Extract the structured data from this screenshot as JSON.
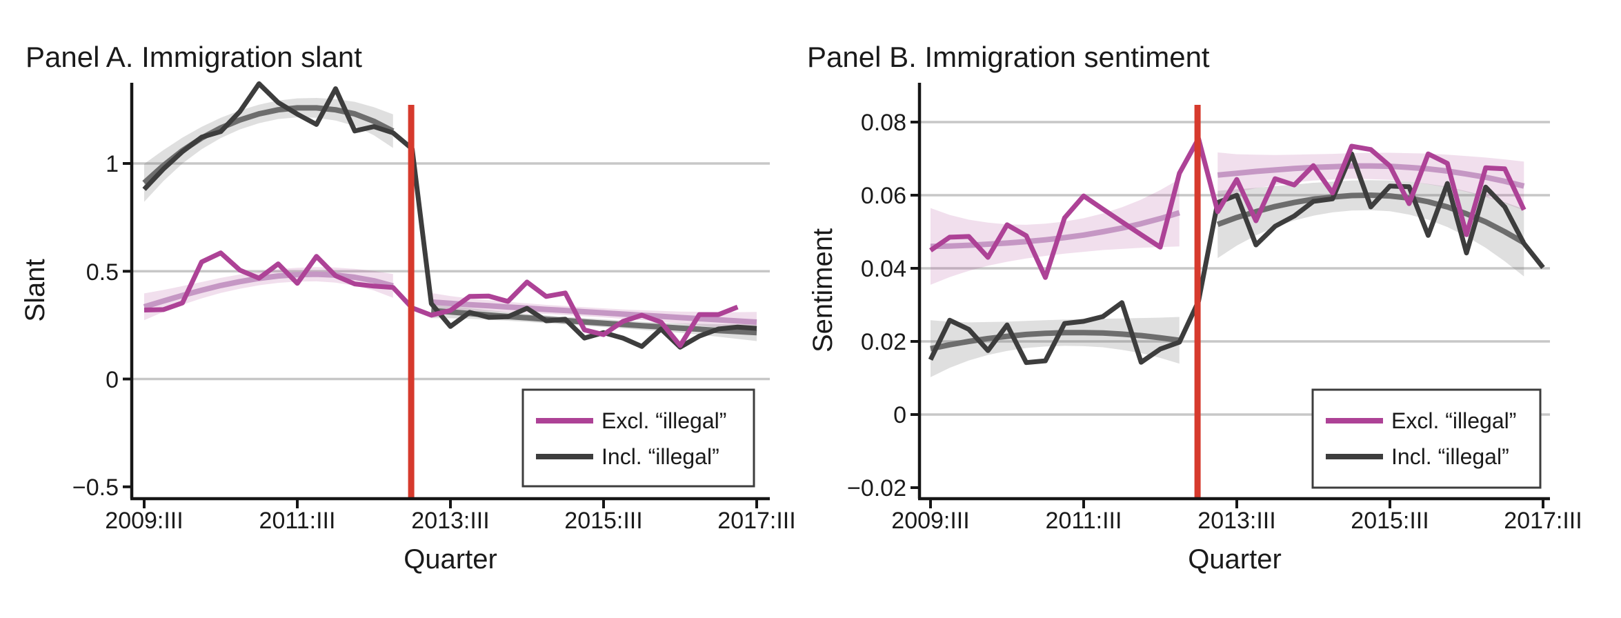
{
  "figure": {
    "background": "#ffffff",
    "event_line_color": "#d63a2d",
    "grid_color": "#c7c7c7",
    "axis_color": "#161616"
  },
  "chart_data": [
    {
      "panel": "A",
      "type": "line",
      "title": "Panel A. Immigration slant",
      "xlabel": "Quarter",
      "ylabel": "Slant",
      "ylim": [
        -0.56,
        1.38
      ],
      "grid": true,
      "legend_position": "bottom-right",
      "gridline_values": [
        1,
        0.5,
        0
      ],
      "y_ticks": [
        {
          "label": "1",
          "value": 1
        },
        {
          "label": "0.5",
          "value": 0.5
        },
        {
          "label": "0",
          "value": 0
        },
        {
          "label": "−0.5",
          "value": -0.5
        }
      ],
      "x_ticks": [
        {
          "label": "2009:III",
          "q": 0
        },
        {
          "label": "2011:III",
          "q": 8
        },
        {
          "label": "2013:III",
          "q": 16
        },
        {
          "label": "2015:III",
          "q": 24
        },
        {
          "label": "2017:III",
          "q": 32
        }
      ],
      "event_line": {
        "q": 13.95,
        "color": "#d63a2d"
      },
      "categories": [
        "2009:III",
        "2009:IV",
        "2010:I",
        "2010:II",
        "2010:III",
        "2010:IV",
        "2011:I",
        "2011:II",
        "2011:III",
        "2011:IV",
        "2012:I",
        "2012:II",
        "2012:III",
        "2012:IV",
        "2013:I",
        "2013:II",
        "2013:III",
        "2013:IV",
        "2014:I",
        "2014:II",
        "2014:III",
        "2014:IV",
        "2015:I",
        "2015:II",
        "2015:III",
        "2015:IV",
        "2016:I",
        "2016:II",
        "2016:III",
        "2016:IV",
        "2017:I",
        "2017:II",
        "2017:III"
      ],
      "series": [
        {
          "key": "excl",
          "name": "Excl. “illegal”",
          "color": "#ad4296",
          "values": [
            0.32,
            0.322,
            0.353,
            0.543,
            0.585,
            0.505,
            0.468,
            0.534,
            0.444,
            0.569,
            0.479,
            0.441,
            0.431,
            0.425,
            0.33,
            0.296,
            0.318,
            0.383,
            0.385,
            0.36,
            0.45,
            0.383,
            0.399,
            0.228,
            0.206,
            0.267,
            0.296,
            0.264,
            0.155,
            0.299,
            0.299,
            0.334,
            null
          ]
        },
        {
          "key": "incl",
          "name": "Incl. “illegal”",
          "color": "#3d3d3d",
          "values": [
            0.88,
            0.974,
            1.055,
            1.122,
            1.148,
            1.241,
            1.37,
            1.283,
            1.229,
            1.181,
            1.347,
            1.151,
            1.171,
            1.142,
            1.068,
            0.35,
            0.244,
            0.309,
            0.286,
            0.289,
            0.328,
            0.27,
            0.277,
            0.19,
            0.215,
            0.19,
            0.151,
            0.232,
            0.148,
            0.199,
            0.232,
            0.241,
            0.235
          ]
        }
      ],
      "smooths": [
        {
          "key": "excl",
          "segment": "pre",
          "q_start": 0,
          "values": [
            0.335,
            0.362,
            0.388,
            0.412,
            0.434,
            0.452,
            0.467,
            0.478,
            0.484,
            0.486,
            0.482,
            0.472,
            0.456,
            0.432
          ],
          "band_halfwidth": [
            0.062,
            0.051,
            0.043,
            0.038,
            0.035,
            0.033,
            0.032,
            0.032,
            0.032,
            0.033,
            0.035,
            0.039,
            0.045,
            0.055
          ]
        },
        {
          "key": "excl",
          "segment": "post",
          "q_start": 15,
          "values": [
            0.357,
            0.351,
            0.345,
            0.34,
            0.334,
            0.329,
            0.323,
            0.318,
            0.312,
            0.307,
            0.301,
            0.296,
            0.291,
            0.285,
            0.28,
            0.275,
            0.269,
            0.264
          ],
          "band_halfwidth": [
            0.042,
            0.034,
            0.029,
            0.026,
            0.024,
            0.022,
            0.021,
            0.021,
            0.021,
            0.021,
            0.022,
            0.023,
            0.025,
            0.028,
            0.032,
            0.036,
            0.041,
            0.047
          ]
        },
        {
          "key": "incl",
          "segment": "pre",
          "q_start": 0,
          "values": [
            0.91,
            0.99,
            1.06,
            1.118,
            1.165,
            1.202,
            1.23,
            1.249,
            1.258,
            1.258,
            1.249,
            1.23,
            1.196,
            1.15
          ],
          "band_halfwidth": [
            0.088,
            0.072,
            0.06,
            0.052,
            0.047,
            0.044,
            0.043,
            0.043,
            0.044,
            0.046,
            0.05,
            0.056,
            0.065,
            0.078
          ]
        },
        {
          "key": "incl",
          "segment": "post",
          "q_start": 15,
          "values": [
            0.318,
            0.311,
            0.304,
            0.297,
            0.29,
            0.284,
            0.277,
            0.271,
            0.265,
            0.259,
            0.253,
            0.247,
            0.242,
            0.236,
            0.231,
            0.225,
            0.22,
            0.215
          ],
          "band_halfwidth": [
            0.036,
            0.029,
            0.025,
            0.022,
            0.02,
            0.019,
            0.018,
            0.018,
            0.018,
            0.018,
            0.018,
            0.019,
            0.02,
            0.022,
            0.025,
            0.029,
            0.034,
            0.039
          ]
        }
      ]
    },
    {
      "panel": "B",
      "type": "line",
      "title": "Panel B. Immigration sentiment",
      "xlabel": "Quarter",
      "ylabel": "Sentiment",
      "ylim": [
        -0.025,
        0.09
      ],
      "grid": true,
      "legend_position": "bottom-right",
      "gridline_values": [
        0.08,
        0.06,
        0.04,
        0.02,
        0
      ],
      "y_ticks": [
        {
          "label": "0.08",
          "value": 0.08
        },
        {
          "label": "0.06",
          "value": 0.06
        },
        {
          "label": "0.04",
          "value": 0.04
        },
        {
          "label": "0.02",
          "value": 0.02
        },
        {
          "label": "0",
          "value": 0
        },
        {
          "label": "−0.02",
          "value": -0.02
        }
      ],
      "x_ticks": [
        {
          "label": "2009:III",
          "q": 0
        },
        {
          "label": "2011:III",
          "q": 8
        },
        {
          "label": "2013:III",
          "q": 16
        },
        {
          "label": "2015:III",
          "q": 24
        },
        {
          "label": "2017:III",
          "q": 32
        }
      ],
      "event_line": {
        "q": 13.95,
        "color": "#d63a2d"
      },
      "categories": [
        "2009:III",
        "2009:IV",
        "2010:I",
        "2010:II",
        "2010:III",
        "2010:IV",
        "2011:I",
        "2011:II",
        "2011:III",
        "2011:IV",
        "2012:I",
        "2012:II",
        "2012:III",
        "2012:IV",
        "2013:I",
        "2013:II",
        "2013:III",
        "2013:IV",
        "2014:I",
        "2014:II",
        "2014:III",
        "2014:IV",
        "2015:I",
        "2015:II",
        "2015:III",
        "2015:IV",
        "2016:I",
        "2016:II",
        "2016:III",
        "2016:IV",
        "2017:I",
        "2017:II",
        "2017:III"
      ],
      "series": [
        {
          "key": "excl",
          "name": "Excl. “illegal”",
          "color": "#ad4296",
          "values": [
            0.0449,
            0.0485,
            0.0487,
            0.043,
            0.0519,
            0.0489,
            0.0375,
            0.0538,
            0.0598,
            0.0562,
            0.0527,
            0.0492,
            0.0458,
            0.066,
            0.0755,
            0.0555,
            0.0643,
            0.053,
            0.0645,
            0.0628,
            0.0681,
            0.0606,
            0.0734,
            0.0725,
            0.068,
            0.0577,
            0.0713,
            0.0687,
            0.0492,
            0.0675,
            0.0672,
            0.056,
            null
          ]
        },
        {
          "key": "incl",
          "name": "Incl. “illegal”",
          "color": "#3d3d3d",
          "values": [
            0.015,
            0.0258,
            0.0233,
            0.0175,
            0.0245,
            0.0142,
            0.0147,
            0.0249,
            0.0255,
            0.0268,
            0.0306,
            0.0143,
            0.0179,
            0.0198,
            0.031,
            0.058,
            0.06,
            0.0464,
            0.0515,
            0.0543,
            0.0583,
            0.059,
            0.0713,
            0.0568,
            0.0625,
            0.0623,
            0.049,
            0.0632,
            0.0442,
            0.0622,
            0.0568,
            0.0468,
            0.0402
          ]
        }
      ],
      "smooths": [
        {
          "key": "excl",
          "segment": "pre",
          "q_start": 0,
          "values": [
            0.046,
            0.0461,
            0.0463,
            0.0466,
            0.0469,
            0.0473,
            0.0478,
            0.0484,
            0.0491,
            0.05,
            0.051,
            0.0522,
            0.0536,
            0.0552
          ],
          "band_halfwidth": [
            0.0105,
            0.0085,
            0.007,
            0.0059,
            0.0051,
            0.0046,
            0.0044,
            0.0044,
            0.0046,
            0.005,
            0.0057,
            0.0066,
            0.0078,
            0.0092
          ]
        },
        {
          "key": "excl",
          "segment": "post",
          "q_start": 15,
          "values": [
            0.0655,
            0.066,
            0.0665,
            0.0669,
            0.0673,
            0.0676,
            0.0678,
            0.068,
            0.068,
            0.0679,
            0.0676,
            0.0672,
            0.0666,
            0.0658,
            0.0649,
            0.0638,
            0.0625
          ],
          "band_halfwidth": [
            0.0062,
            0.0052,
            0.0046,
            0.0041,
            0.0038,
            0.0036,
            0.0035,
            0.0035,
            0.0036,
            0.0037,
            0.0039,
            0.0042,
            0.0045,
            0.0049,
            0.0054,
            0.006,
            0.0067
          ]
        },
        {
          "key": "incl",
          "segment": "pre",
          "q_start": 0,
          "values": [
            0.018,
            0.0191,
            0.02,
            0.0208,
            0.0214,
            0.0219,
            0.0222,
            0.0224,
            0.0224,
            0.0223,
            0.022,
            0.0216,
            0.021,
            0.0203
          ],
          "band_halfwidth": [
            0.0078,
            0.0063,
            0.0052,
            0.0045,
            0.004,
            0.0037,
            0.0036,
            0.0036,
            0.0037,
            0.0039,
            0.0043,
            0.0048,
            0.0055,
            0.0064
          ]
        },
        {
          "key": "incl",
          "segment": "post",
          "q_start": 15,
          "values": [
            0.052,
            0.0539,
            0.0555,
            0.0569,
            0.058,
            0.0589,
            0.0595,
            0.0599,
            0.06,
            0.0598,
            0.0592,
            0.0582,
            0.0568,
            0.0549,
            0.0527,
            0.05,
            0.047
          ],
          "band_halfwidth": [
            0.0092,
            0.0077,
            0.0065,
            0.0056,
            0.0049,
            0.0045,
            0.0042,
            0.0041,
            0.0041,
            0.0042,
            0.0045,
            0.0049,
            0.0055,
            0.0062,
            0.0071,
            0.0081,
            0.0092
          ]
        }
      ]
    }
  ]
}
